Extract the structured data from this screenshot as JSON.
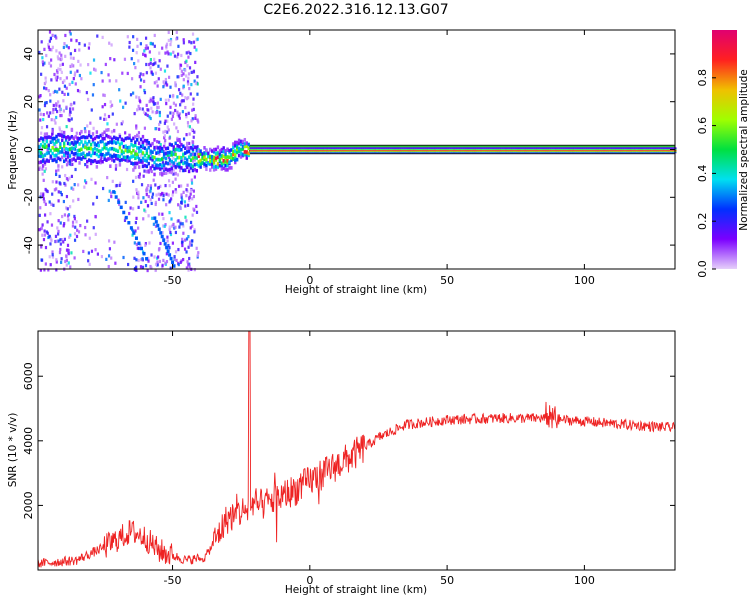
{
  "title": "C2E6.2022.316.12.13.G07",
  "chart_data": [
    {
      "type": "heatmap",
      "xlabel": "Height of straight line (km)",
      "ylabel": "Frequency (Hz)",
      "xlim": [
        -99,
        133
      ],
      "ylim": [
        -50,
        50
      ],
      "x_ticks": [
        -50,
        0,
        50,
        100
      ],
      "y_ticks": [
        -40,
        -20,
        0,
        20,
        40
      ],
      "colorbar": {
        "label": "Normalized spectral amplitude",
        "ticks": [
          "0.0",
          "0.2",
          "0.4",
          "0.6",
          "0.8"
        ],
        "range": [
          0,
          1
        ],
        "colors": [
          "#e6d0fa",
          "#7b00ff",
          "#0030ff",
          "#00e0f0",
          "#00e040",
          "#a0ff00",
          "#f0c000",
          "#ff2020",
          "#e00070"
        ]
      },
      "ridge": [
        {
          "x": -98,
          "f": 1
        },
        {
          "x": -90,
          "f": 1.5
        },
        {
          "x": -80,
          "f": 1
        },
        {
          "x": -72,
          "f": 1
        },
        {
          "x": -66,
          "f": 0
        },
        {
          "x": -60,
          "f": -1
        },
        {
          "x": -55,
          "f": -3
        },
        {
          "x": -50,
          "f": -2
        },
        {
          "x": -45,
          "f": -3
        },
        {
          "x": -40,
          "f": -3
        },
        {
          "x": -35,
          "f": -3
        },
        {
          "x": -30,
          "f": -3
        },
        {
          "x": -26,
          "f": 1
        },
        {
          "x": -22,
          "f": 0
        },
        {
          "x": -10,
          "f": 0
        },
        {
          "x": 0,
          "f": 0
        },
        {
          "x": 133,
          "f": 0
        }
      ],
      "background_noise_range_x": [
        -99,
        -41
      ]
    },
    {
      "type": "line",
      "xlabel": "Height of straight line (km)",
      "ylabel": "SNR (10 * v/v)",
      "xlim": [
        -99,
        133
      ],
      "ylim": [
        0,
        7400
      ],
      "x_ticks": [
        -50,
        0,
        50,
        100
      ],
      "y_ticks": [
        2000,
        4000,
        6000
      ],
      "color": "#ee2222",
      "envelope": [
        {
          "x": -99,
          "y": 200
        },
        {
          "x": -85,
          "y": 300
        },
        {
          "x": -75,
          "y": 700
        },
        {
          "x": -65,
          "y": 1200
        },
        {
          "x": -60,
          "y": 1000
        },
        {
          "x": -55,
          "y": 600
        },
        {
          "x": -45,
          "y": 300
        },
        {
          "x": -38,
          "y": 400
        },
        {
          "x": -34,
          "y": 1000
        },
        {
          "x": -30,
          "y": 1600
        },
        {
          "x": -25,
          "y": 1800
        },
        {
          "x": -15,
          "y": 2100
        },
        {
          "x": -5,
          "y": 2500
        },
        {
          "x": 5,
          "y": 3000
        },
        {
          "x": 15,
          "y": 3500
        },
        {
          "x": 25,
          "y": 4100
        },
        {
          "x": 35,
          "y": 4500
        },
        {
          "x": 50,
          "y": 4650
        },
        {
          "x": 70,
          "y": 4700
        },
        {
          "x": 85,
          "y": 4700
        },
        {
          "x": 100,
          "y": 4600
        },
        {
          "x": 115,
          "y": 4500
        },
        {
          "x": 133,
          "y": 4400
        }
      ],
      "spike": {
        "x": -22,
        "y": 7400
      }
    }
  ]
}
